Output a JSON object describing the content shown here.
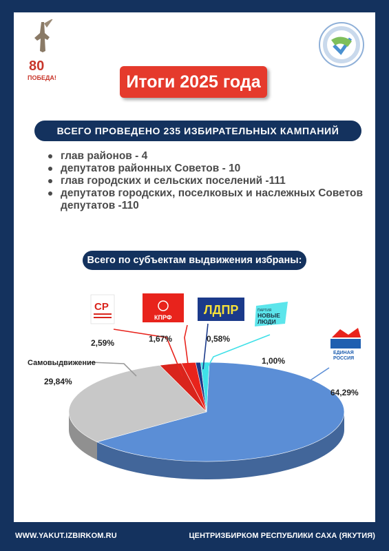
{
  "emblem": {
    "number": "80",
    "text": "ПОБЕДА!"
  },
  "title": "Итоги 2025 года",
  "banner": "ВСЕГО ПРОВЕДЕНО 235 ИЗБИРАТЕЛЬНЫХ КАМПАНИЙ",
  "items": [
    "глав районов - 4",
    "депутатов районных Советов - 10",
    "глав городских и сельских поселений -111",
    "депутатов городских, поселковых и наслежных Советов депутатов -110"
  ],
  "subbanner": "Всего по субъектам выдвижения избраны:",
  "parties": {
    "sr": {
      "logo": "СР"
    },
    "kprf": {
      "logo": "КПРФ"
    },
    "ldpr": {
      "logo": "ЛДПР"
    },
    "nl": {
      "logo_small": "ПАРТИЯ",
      "logo_line1": "НОВЫЕ",
      "logo_line2": "ЛЮДИ"
    },
    "er": {
      "logo_line1": "ЕДИНАЯ",
      "logo_line2": "РОССИЯ"
    }
  },
  "chart_data": {
    "type": "pie",
    "title": "",
    "series": [
      {
        "name": "Единая Россия",
        "value": 64.29,
        "label": "64,29%",
        "color": "#5b8ed6"
      },
      {
        "name": "Самовыдвижение",
        "value": 29.84,
        "label": "29,84%",
        "color": "#c8c8c8"
      },
      {
        "name": "Справедливая Россия",
        "value": 2.59,
        "label": "2,59%",
        "color": "#d9241c"
      },
      {
        "name": "КПРФ",
        "value": 1.67,
        "label": "1,67%",
        "color": "#e8231c"
      },
      {
        "name": "ЛДПР",
        "value": 0.58,
        "label": "0,58%",
        "color": "#1b3a8a"
      },
      {
        "name": "Новые люди",
        "value": 1.0,
        "label": "1,00%",
        "color": "#3fe0e8"
      }
    ]
  },
  "footer": {
    "left": "WWW.YAKUT.IZBIRKOM.RU",
    "right": "ЦЕНТРИЗБИРКОМ РЕСПУБЛИКИ САХА (ЯКУТИЯ)"
  }
}
